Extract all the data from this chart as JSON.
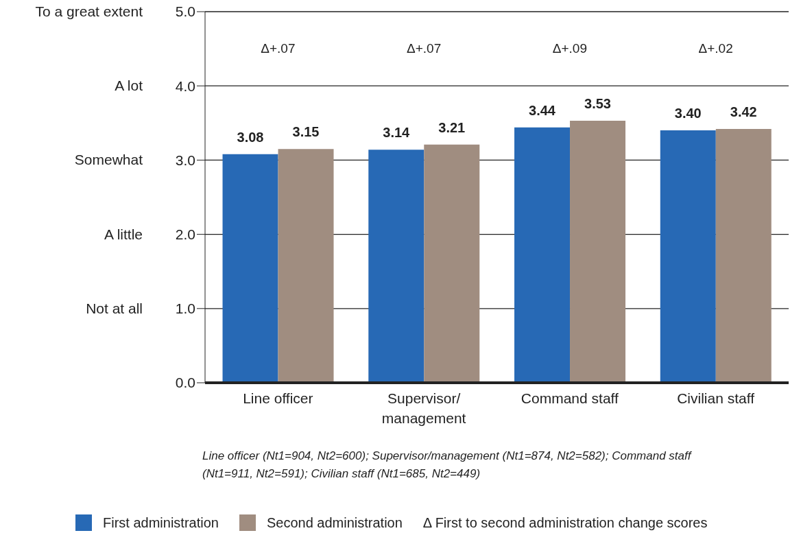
{
  "chart_data": {
    "type": "bar",
    "categories": [
      "Line officer",
      "Supervisor/ management",
      "Command staff",
      "Civilian staff"
    ],
    "series": [
      {
        "name": "First administration",
        "color": "#2769b5",
        "values": [
          3.08,
          3.14,
          3.44,
          3.4
        ],
        "value_labels": [
          "3.08",
          "3.14",
          "3.44",
          "3.40"
        ]
      },
      {
        "name": "Second administration",
        "color": "#a08d80",
        "values": [
          3.15,
          3.21,
          3.53,
          3.42
        ],
        "value_labels": [
          "3.15",
          "3.21",
          "3.53",
          "3.42"
        ]
      }
    ],
    "ylim": [
      0,
      5
    ],
    "yticks": [
      {
        "value": 0,
        "label": "0.0"
      },
      {
        "value": 1,
        "label": "1.0"
      },
      {
        "value": 2,
        "label": "2.0"
      },
      {
        "value": 3,
        "label": "3.0"
      },
      {
        "value": 4,
        "label": "4.0"
      },
      {
        "value": 5,
        "label": "5.0"
      }
    ],
    "annotations": [
      "Δ+.07",
      "Δ+.07",
      "Δ+.09",
      "Δ+.02",
      "Not at all",
      "A little",
      "Somewhat",
      "A lot",
      "To a great extent",
      "Line officer (Nt1=904, Nt2=600); Supervisor/management (Nt1=874, Nt2=582); Command staff (Nt1=911, Nt2=591); Civilian staff (Nt1=685, Nt2=449)",
      "Δ First to second administration change scores"
    ],
    "grid": "y",
    "legend": "bottom"
  }
}
